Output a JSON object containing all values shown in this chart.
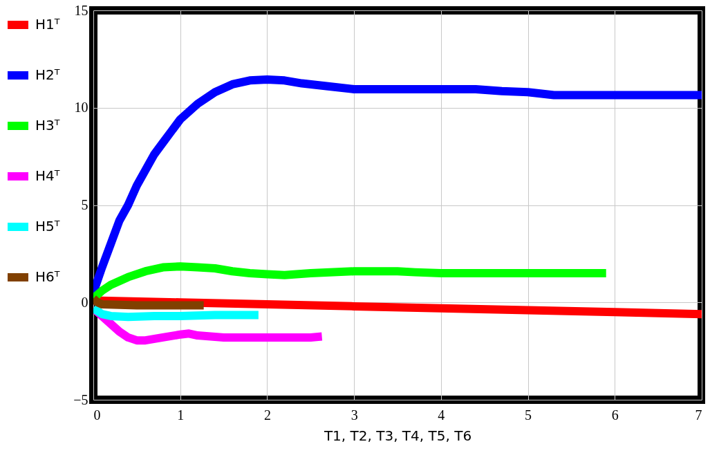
{
  "chart_data": {
    "type": "line",
    "xlabel": "T1, T2, T3, T4, T5, T6",
    "xlim": [
      0,
      7
    ],
    "ylim": [
      -5,
      15
    ],
    "xticks": [
      0,
      1,
      2,
      3,
      4,
      5,
      6,
      7
    ],
    "yticks": [
      -5,
      0,
      5,
      10,
      15
    ],
    "grid": true,
    "legend": "left",
    "line_style": "solid",
    "marker": "none",
    "series": [
      {
        "name": "H1ᵀ",
        "color": "#ff0000",
        "x": [
          0,
          1,
          2,
          3,
          4,
          5,
          6,
          7
        ],
        "values": [
          0.1,
          0,
          -0.1,
          -0.2,
          -0.3,
          -0.4,
          -0.5,
          -0.6
        ]
      },
      {
        "name": "H2ᵀ",
        "color": "#0000ff",
        "x": [
          0,
          0.1,
          0.2,
          0.3,
          0.4,
          0.5,
          0.6,
          0.7,
          0.8,
          0.9,
          1.0,
          1.2,
          1.4,
          1.6,
          1.8,
          2.0,
          2.2,
          2.4,
          2.7,
          3.0,
          3.5,
          4.0,
          4.4,
          4.7,
          5.0,
          5.3,
          6.0,
          7.0
        ],
        "values": [
          0.5,
          1.8,
          3,
          4.2,
          5,
          6,
          6.8,
          7.6,
          8.2,
          8.8,
          9.4,
          10.2,
          10.8,
          11.2,
          11.4,
          11.45,
          11.4,
          11.25,
          11.1,
          10.95,
          10.95,
          10.95,
          10.95,
          10.85,
          10.8,
          10.65,
          10.65,
          10.65
        ]
      },
      {
        "name": "H3ᵀ",
        "color": "#00ff00",
        "x": [
          0,
          0.1,
          0.2,
          0.4,
          0.6,
          0.8,
          1.0,
          1.2,
          1.4,
          1.6,
          1.8,
          2.0,
          2.2,
          2.5,
          3.0,
          3.5,
          3.7,
          4.0,
          5.0,
          5.9
        ],
        "values": [
          0.2,
          0.6,
          0.9,
          1.3,
          1.6,
          1.8,
          1.85,
          1.8,
          1.75,
          1.6,
          1.5,
          1.45,
          1.4,
          1.5,
          1.6,
          1.6,
          1.55,
          1.5,
          1.5,
          1.5
        ]
      },
      {
        "name": "H4ᵀ",
        "color": "#ff00ff",
        "x": [
          0,
          0.1,
          0.2,
          0.3,
          0.4,
          0.5,
          0.6,
          0.8,
          1.0,
          1.1,
          1.2,
          1.5,
          2.0,
          2.5,
          2.63
        ],
        "values": [
          -0.3,
          -0.7,
          -1.1,
          -1.5,
          -1.8,
          -1.95,
          -1.95,
          -1.8,
          -1.65,
          -1.6,
          -1.7,
          -1.8,
          -1.8,
          -1.8,
          -1.75
        ]
      },
      {
        "name": "H5ᵀ",
        "color": "#00ffff",
        "x": [
          0,
          0.1,
          0.2,
          0.4,
          0.7,
          1.0,
          1.4,
          1.9
        ],
        "values": [
          -0.3,
          -0.6,
          -0.7,
          -0.75,
          -0.7,
          -0.7,
          -0.65,
          -0.65
        ]
      },
      {
        "name": "H6ᵀ",
        "color": "#804000",
        "x": [
          0,
          0.05,
          0.1,
          0.5,
          1.0,
          1.27
        ],
        "values": [
          0.2,
          0,
          -0.1,
          -0.15,
          -0.15,
          -0.15
        ]
      }
    ]
  }
}
